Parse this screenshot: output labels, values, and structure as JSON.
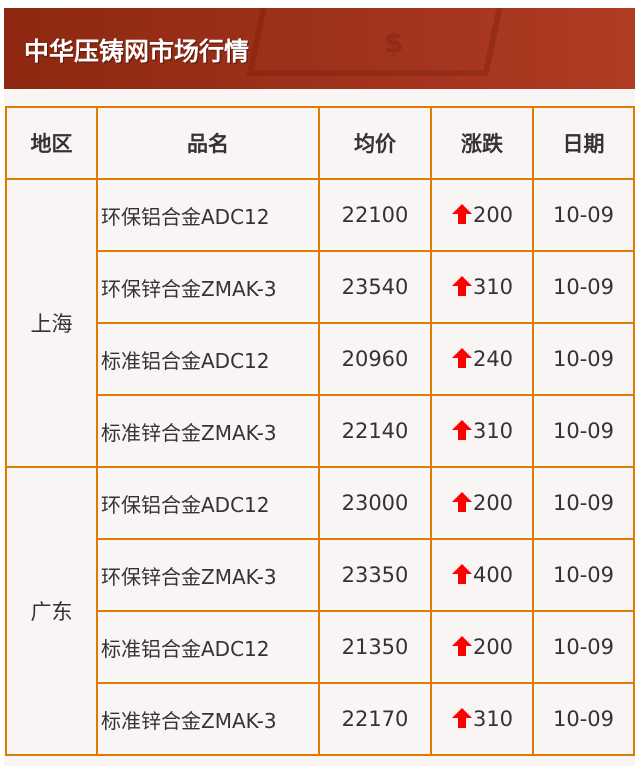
{
  "header": {
    "title": "中华压铸网市场行情"
  },
  "table": {
    "columns": [
      "地区",
      "品名",
      "均价",
      "涨跌",
      "日期"
    ],
    "groups": [
      {
        "region": "上海",
        "rows": [
          {
            "name": "环保铝合金ADC12",
            "price": "22100",
            "change": "200",
            "direction": "up",
            "date": "10-09"
          },
          {
            "name": "环保锌合金ZMAK-3",
            "price": "23540",
            "change": "310",
            "direction": "up",
            "date": "10-09"
          },
          {
            "name": "标准铝合金ADC12",
            "price": "20960",
            "change": "240",
            "direction": "up",
            "date": "10-09"
          },
          {
            "name": "标准锌合金ZMAK-3",
            "price": "22140",
            "change": "310",
            "direction": "up",
            "date": "10-09"
          }
        ]
      },
      {
        "region": "广东",
        "rows": [
          {
            "name": "环保铝合金ADC12",
            "price": "23000",
            "change": "200",
            "direction": "up",
            "date": "10-09"
          },
          {
            "name": "环保锌合金ZMAK-3",
            "price": "23350",
            "change": "400",
            "direction": "up",
            "date": "10-09"
          },
          {
            "name": "标准铝合金ADC12",
            "price": "21350",
            "change": "200",
            "direction": "up",
            "date": "10-09"
          },
          {
            "name": "标准锌合金ZMAK-3",
            "price": "22170",
            "change": "310",
            "direction": "up",
            "date": "10-09"
          }
        ]
      }
    ]
  },
  "colors": {
    "border": "#e07b00",
    "banner": "#a53520",
    "up_arrow": "#ff0000"
  }
}
